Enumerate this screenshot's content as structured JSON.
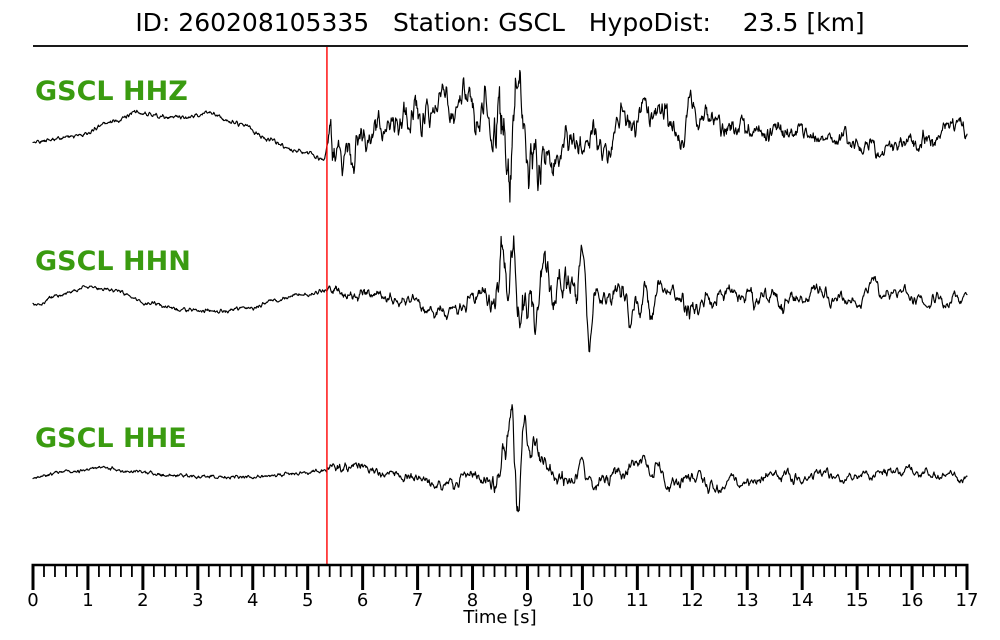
{
  "header": {
    "id_label": "ID:",
    "id_value": "260208105335",
    "station_label": "Station:",
    "station_value": "GSCL",
    "hypodist_label": "HypoDist:",
    "hypodist_value": "23.5",
    "hypodist_unit": "[km]",
    "title_text": "ID: 260208105335   Station: GSCL   HypoDist:    23.5 [km]"
  },
  "chart_data": {
    "type": "line",
    "title": "ID: 260208105335   Station: GSCL   HypoDist:    23.5 [km]",
    "xlabel": "Time [s]",
    "xlim": [
      0,
      17
    ],
    "x_major_ticks": [
      0,
      1,
      2,
      3,
      4,
      5,
      6,
      7,
      8,
      9,
      10,
      11,
      12,
      13,
      14,
      15,
      16,
      17
    ],
    "x_minor_tick_step_s": 0.2,
    "grid": false,
    "legend_position": "none",
    "phase_pick_time_s": 5.35,
    "colors": {
      "trace": "#000000",
      "pick_line": "#ff0000",
      "channel_label": "#3a9b10",
      "axis": "#000000"
    },
    "traces": [
      {
        "label": "GSCL HHZ",
        "station": "GSCL",
        "channel": "HHZ",
        "seed": 11,
        "lf_points": [
          [
            0,
            4
          ],
          [
            0.8,
            -2
          ],
          [
            1.5,
            -17
          ],
          [
            1.9,
            -25
          ],
          [
            2.3,
            -21
          ],
          [
            2.8,
            -20
          ],
          [
            3.2,
            -25
          ],
          [
            3.7,
            -15
          ],
          [
            4.3,
            1
          ],
          [
            4.8,
            13
          ],
          [
            5.3,
            20
          ],
          [
            5.6,
            10
          ],
          [
            6.2,
            -8
          ],
          [
            6.8,
            -22
          ],
          [
            7.4,
            -32
          ],
          [
            7.9,
            -30
          ],
          [
            8.3,
            -20
          ],
          [
            8.7,
            -10
          ],
          [
            9.3,
            14
          ],
          [
            9.9,
            12
          ],
          [
            10.4,
            -5
          ],
          [
            11,
            -18
          ],
          [
            11.7,
            -22
          ],
          [
            12.4,
            -18
          ],
          [
            13.1,
            -10
          ],
          [
            13.8,
            -3
          ],
          [
            14.5,
            2
          ],
          [
            15.2,
            6
          ],
          [
            15.8,
            7
          ],
          [
            16.4,
            0
          ],
          [
            17,
            -14
          ]
        ],
        "mf_envelope": [
          [
            0,
            0.6
          ],
          [
            5.3,
            0.7
          ],
          [
            5.42,
            34
          ],
          [
            5.7,
            16
          ],
          [
            6.3,
            15
          ],
          [
            6.9,
            18
          ],
          [
            7.5,
            20
          ],
          [
            8.05,
            20
          ],
          [
            8.3,
            26
          ],
          [
            8.45,
            70
          ],
          [
            9.0,
            68
          ],
          [
            9.25,
            28
          ],
          [
            9.8,
            14
          ],
          [
            10.4,
            16
          ],
          [
            11.0,
            20
          ],
          [
            11.8,
            19
          ],
          [
            12.6,
            16
          ],
          [
            13.4,
            11
          ],
          [
            14.3,
            8
          ],
          [
            15.2,
            7
          ],
          [
            16.2,
            7
          ],
          [
            17,
            9
          ]
        ],
        "hf_envelope": [
          [
            0,
            1.6
          ],
          [
            5.3,
            1.8
          ],
          [
            5.45,
            12
          ],
          [
            6.5,
            9
          ],
          [
            7.5,
            10
          ],
          [
            8.3,
            12
          ],
          [
            8.5,
            24
          ],
          [
            9.0,
            22
          ],
          [
            9.5,
            12
          ],
          [
            10.5,
            9
          ],
          [
            12,
            8
          ],
          [
            13.5,
            6
          ],
          [
            15,
            5
          ],
          [
            16,
            5
          ],
          [
            17,
            6
          ]
        ]
      },
      {
        "label": "GSCL HHN",
        "station": "GSCL",
        "channel": "HHN",
        "seed": 23,
        "lf_points": [
          [
            0,
            5
          ],
          [
            0.5,
            -5
          ],
          [
            1.0,
            -13
          ],
          [
            1.5,
            -9
          ],
          [
            2.1,
            3
          ],
          [
            2.7,
            10
          ],
          [
            3.3,
            11
          ],
          [
            3.9,
            8
          ],
          [
            4.4,
            1
          ],
          [
            4.9,
            -6
          ],
          [
            5.35,
            -9
          ],
          [
            5.9,
            -6
          ],
          [
            6.4,
            -1
          ],
          [
            7.0,
            7
          ],
          [
            7.6,
            11
          ],
          [
            8.1,
            5
          ],
          [
            8.6,
            -4
          ],
          [
            9.3,
            -2
          ],
          [
            10.2,
            3
          ],
          [
            11.0,
            0
          ],
          [
            12.0,
            2
          ],
          [
            13.0,
            -2
          ],
          [
            13.8,
            -6
          ],
          [
            14.6,
            -2
          ],
          [
            15.4,
            -7
          ],
          [
            16.2,
            -2
          ],
          [
            17,
            1
          ]
        ],
        "mf_envelope": [
          [
            0,
            0.7
          ],
          [
            5.3,
            0.9
          ],
          [
            5.45,
            5
          ],
          [
            6.3,
            4
          ],
          [
            7.0,
            6
          ],
          [
            7.7,
            8
          ],
          [
            8.2,
            10
          ],
          [
            8.38,
            58
          ],
          [
            8.8,
            72
          ],
          [
            9.5,
            52
          ],
          [
            10.1,
            42
          ],
          [
            10.7,
            26
          ],
          [
            11.4,
            17
          ],
          [
            12.2,
            14
          ],
          [
            13.2,
            12
          ],
          [
            14.2,
            12
          ],
          [
            15.1,
            10
          ],
          [
            16.0,
            9
          ],
          [
            17,
            7
          ]
        ],
        "hf_envelope": [
          [
            0,
            1.5
          ],
          [
            5.3,
            1.6
          ],
          [
            5.5,
            4
          ],
          [
            6.5,
            3.5
          ],
          [
            7.5,
            4.5
          ],
          [
            8.3,
            6
          ],
          [
            8.5,
            14
          ],
          [
            9.5,
            12
          ],
          [
            10.5,
            8
          ],
          [
            12,
            6
          ],
          [
            13.5,
            5
          ],
          [
            15,
            4
          ],
          [
            17,
            3.5
          ]
        ]
      },
      {
        "label": "GSCL HHE",
        "station": "GSCL",
        "channel": "HHE",
        "seed": 37,
        "lf_points": [
          [
            0,
            2
          ],
          [
            0.6,
            -3
          ],
          [
            1.2,
            -7
          ],
          [
            1.8,
            -4
          ],
          [
            2.5,
            0
          ],
          [
            3.3,
            2
          ],
          [
            4.1,
            2
          ],
          [
            4.7,
            -1
          ],
          [
            5.2,
            -4
          ],
          [
            5.6,
            -10
          ],
          [
            6.0,
            -7
          ],
          [
            6.6,
            0
          ],
          [
            7.3,
            7
          ],
          [
            7.9,
            9
          ],
          [
            8.5,
            2
          ],
          [
            9.2,
            -2
          ],
          [
            10,
            0
          ],
          [
            11,
            2
          ],
          [
            12,
            4
          ],
          [
            12.8,
            6
          ],
          [
            13.6,
            3
          ],
          [
            14.4,
            1
          ],
          [
            15.2,
            -2
          ],
          [
            16,
            -3
          ],
          [
            16.6,
            -1
          ],
          [
            17,
            2
          ]
        ],
        "mf_envelope": [
          [
            0,
            0.5
          ],
          [
            5.3,
            0.7
          ],
          [
            5.5,
            4
          ],
          [
            6.3,
            3
          ],
          [
            7.0,
            5
          ],
          [
            7.8,
            7
          ],
          [
            8.28,
            9
          ],
          [
            8.42,
            52
          ],
          [
            8.8,
            72
          ],
          [
            9.05,
            26
          ],
          [
            9.6,
            17
          ],
          [
            10.3,
            16
          ],
          [
            11.0,
            14
          ],
          [
            12.0,
            10
          ],
          [
            13.0,
            8
          ],
          [
            14.0,
            7
          ],
          [
            15.0,
            6
          ],
          [
            16.0,
            7
          ],
          [
            17,
            4
          ]
        ],
        "hf_envelope": [
          [
            0,
            1.4
          ],
          [
            5.3,
            1.5
          ],
          [
            5.6,
            4
          ],
          [
            6.5,
            3
          ],
          [
            7.5,
            3.5
          ],
          [
            8.3,
            5
          ],
          [
            8.6,
            9
          ],
          [
            9.5,
            6
          ],
          [
            10.5,
            5
          ],
          [
            12,
            4
          ],
          [
            13.5,
            3.5
          ],
          [
            15,
            3
          ],
          [
            17,
            2.5
          ]
        ]
      }
    ]
  }
}
